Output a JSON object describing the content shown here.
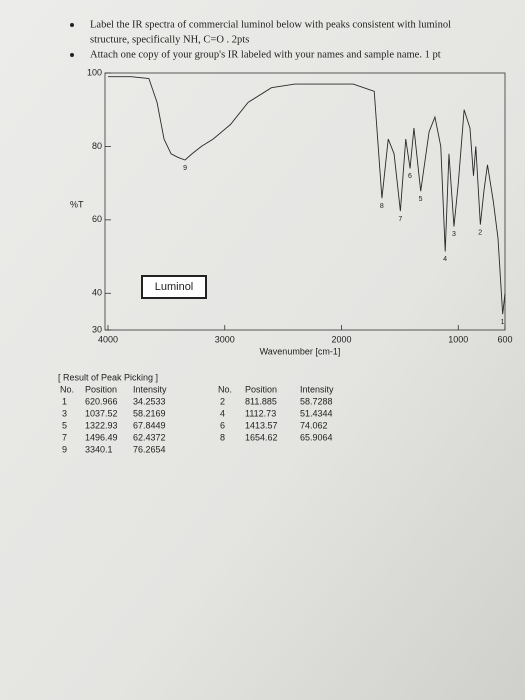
{
  "instructions": [
    "Label the IR spectra of commercial luminol below with peaks consistent with luminol",
    "structure, specifically NH, C=O . 2pts",
    "Attach one copy of your group's IR labeled with your names and sample name. 1 pt"
  ],
  "chart_data": {
    "type": "line",
    "y_label": "%T",
    "x_label": "Wavenumber [cm-1]",
    "annotation": "Luminol",
    "xlim": [
      4000,
      600
    ],
    "xticks": [
      4000,
      3000,
      2000,
      1000,
      600
    ],
    "ylim": [
      30,
      100
    ],
    "yticks": [
      30,
      40,
      60,
      80,
      100
    ],
    "x": [
      4000,
      3800,
      3650,
      3580,
      3520,
      3460,
      3400,
      3340,
      3280,
      3200,
      3100,
      2950,
      2800,
      2600,
      2400,
      2200,
      1900,
      1720,
      1654,
      1600,
      1550,
      1496,
      1450,
      1413,
      1380,
      1322,
      1250,
      1200,
      1150,
      1112,
      1080,
      1037,
      1000,
      950,
      900,
      870,
      850,
      811,
      780,
      750,
      700,
      660,
      620,
      600
    ],
    "series": [
      {
        "color": "#2a2a2a",
        "values": [
          99,
          99,
          98.5,
          92,
          82,
          78,
          77,
          76.3,
          78,
          80,
          82,
          86,
          92,
          96,
          97,
          97,
          97,
          95,
          65.9,
          82,
          78,
          62.4,
          82,
          74,
          85,
          67.8,
          84,
          88,
          80,
          51.4,
          78,
          58.2,
          70,
          90,
          85,
          72,
          80,
          58.7,
          68,
          75,
          65,
          55,
          34.3,
          40
        ]
      }
    ],
    "peaks": {
      "labels": [
        "1",
        "2",
        "3",
        "4",
        "5",
        "6",
        "7",
        "8",
        "9"
      ],
      "x": [
        620.966,
        811.885,
        1037.52,
        1112.73,
        1322.93,
        1413.57,
        1496.49,
        1654.62,
        3340.1
      ],
      "y": [
        34.2533,
        58.7288,
        58.2169,
        51.4344,
        67.8449,
        74.062,
        62.4372,
        65.9064,
        76.2654
      ]
    }
  },
  "peak_table": {
    "title": "[ Result of Peak Picking ]",
    "columns": [
      "No.",
      "Position",
      "Intensity"
    ],
    "left": [
      [
        "1",
        "620.966",
        "34.2533"
      ],
      [
        "3",
        "1037.52",
        "58.2169"
      ],
      [
        "5",
        "1322.93",
        "67.8449"
      ],
      [
        "7",
        "1496.49",
        "62.4372"
      ],
      [
        "9",
        "3340.1",
        "76.2654"
      ]
    ],
    "right": [
      [
        "2",
        "811.885",
        "58.7288"
      ],
      [
        "4",
        "1112.73",
        "51.4344"
      ],
      [
        "6",
        "1413.57",
        "74.062"
      ],
      [
        "8",
        "1654.62",
        "65.9064"
      ]
    ]
  }
}
